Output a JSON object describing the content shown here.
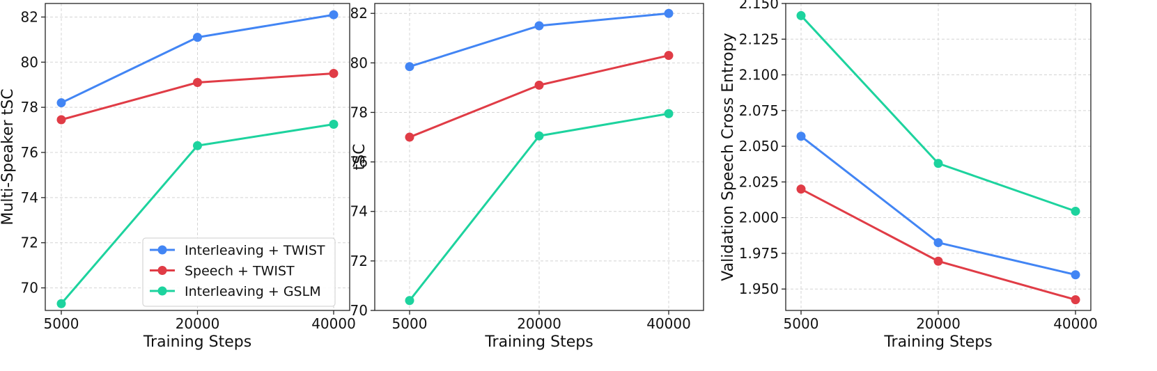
{
  "chart_data": [
    {
      "type": "line",
      "title": "",
      "xlabel": "Training Steps",
      "ylabel": "Multi-Speaker tSC",
      "categories": [
        "5000",
        "20000",
        "40000"
      ],
      "ylim": [
        69.0,
        82.6
      ],
      "yticks": [
        "70",
        "72",
        "74",
        "76",
        "78",
        "80",
        "82"
      ],
      "grid": true,
      "legend": "lower-right",
      "series": [
        {
          "name": "Interleaving + TWIST",
          "color": "#4285f4",
          "values": [
            78.2,
            81.1,
            82.1
          ]
        },
        {
          "name": "Speech + TWIST",
          "color": "#e03c46",
          "values": [
            77.45,
            79.1,
            79.5
          ]
        },
        {
          "name": "Interleaving + GSLM",
          "color": "#1dd39e",
          "values": [
            69.3,
            76.3,
            77.25
          ]
        }
      ]
    },
    {
      "type": "line",
      "title": "",
      "xlabel": "Training Steps",
      "ylabel": "tSC",
      "categories": [
        "5000",
        "20000",
        "40000"
      ],
      "ylim": [
        70.0,
        82.4
      ],
      "yticks": [
        "70",
        "72",
        "74",
        "76",
        "78",
        "80",
        "82"
      ],
      "grid": true,
      "legend": "",
      "series": [
        {
          "name": "Interleaving + TWIST",
          "color": "#4285f4",
          "values": [
            79.85,
            81.5,
            82.0
          ]
        },
        {
          "name": "Speech + TWIST",
          "color": "#e03c46",
          "values": [
            77.0,
            79.1,
            80.3
          ]
        },
        {
          "name": "Interleaving + GSLM",
          "color": "#1dd39e",
          "values": [
            70.4,
            77.05,
            77.95
          ]
        }
      ]
    },
    {
      "type": "line",
      "title": "",
      "xlabel": "Training Steps",
      "ylabel": "Validation Speech Cross Entropy",
      "categories": [
        "5000",
        "20000",
        "40000"
      ],
      "ylim": [
        1.935,
        2.15
      ],
      "yticks": [
        "1.950",
        "1.975",
        "2.000",
        "2.025",
        "2.050",
        "2.075",
        "2.100",
        "2.125",
        "2.150"
      ],
      "grid": true,
      "legend": "",
      "series": [
        {
          "name": "Interleaving + TWIST",
          "color": "#4285f4",
          "values": [
            2.057,
            1.9825,
            1.96
          ]
        },
        {
          "name": "Speech + TWIST",
          "color": "#e03c46",
          "values": [
            2.02,
            1.9695,
            1.9425
          ]
        },
        {
          "name": "Interleaving + GSLM",
          "color": "#1dd39e",
          "values": [
            2.1415,
            2.038,
            2.0045
          ]
        }
      ]
    }
  ]
}
